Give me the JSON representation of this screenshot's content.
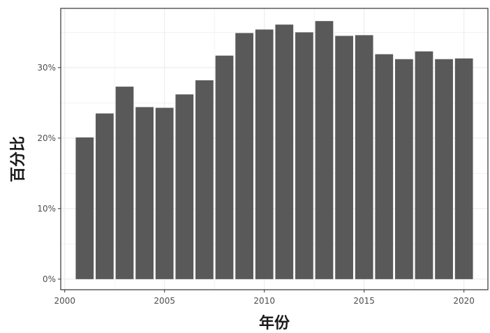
{
  "chart_data": {
    "type": "bar",
    "title": "",
    "xlabel": "年份",
    "ylabel": "百分比",
    "x": [
      2001,
      2002,
      2003,
      2004,
      2005,
      2006,
      2007,
      2008,
      2009,
      2010,
      2011,
      2012,
      2013,
      2014,
      2015,
      2016,
      2017,
      2018,
      2019,
      2020
    ],
    "values": [
      20.1,
      23.5,
      27.3,
      24.4,
      24.3,
      26.2,
      28.2,
      31.7,
      34.9,
      35.4,
      36.1,
      35.0,
      36.6,
      34.5,
      34.6,
      31.9,
      31.2,
      32.3,
      31.2,
      31.3
    ],
    "value_format": "percent",
    "xlim": [
      1999.8,
      2021.2
    ],
    "ylim": [
      -1.5,
      38.4
    ],
    "x_ticks": [
      "2000",
      "2005",
      "2010",
      "2015",
      "2020"
    ],
    "y_ticks": [
      "0%",
      "10%",
      "20%",
      "30%"
    ],
    "bar_color": "#595959",
    "grid": true,
    "grid_color": "#ebebeb",
    "panel_border_color": "#333333",
    "legend": "none"
  }
}
